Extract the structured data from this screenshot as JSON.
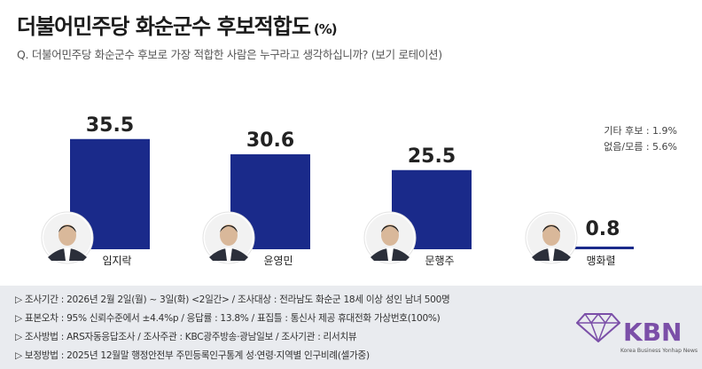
{
  "header": {
    "title": "더불어민주당 화순군수 후보적합도",
    "title_unit": "(%)",
    "question": "Q. 더불어민주당 화순군수 후보로 가장 적합한 사람은 누구라고 생각하십니까? (보기 로테이션)"
  },
  "others": {
    "etc": "기타 후보 : 1.9%",
    "none": "없음/모름 : 5.6%"
  },
  "chart_data": {
    "type": "bar",
    "categories": [
      "임지락",
      "윤영민",
      "문행주",
      "맹화렬"
    ],
    "values": [
      35.5,
      30.6,
      25.5,
      0.8
    ],
    "value_labels": [
      "35.5",
      "30.6",
      "25.5",
      "0.8"
    ],
    "bar_color": "#1a2a8a",
    "ylim": [
      0,
      40
    ]
  },
  "survey_info": {
    "line1": "▷ 조사기간 : 2026년 2월 2일(월) ~ 3일(화) <2일간> / 조사대상 : 전라남도 화순군 18세 이상 성인 남녀 500명",
    "line2": "▷ 표본오차 : 95% 신뢰수준에서 ±4.4%p / 응답률 : 13.8% / 표집틀 : 통신사 제공 휴대전화 가상번호(100%)",
    "line3": "▷ 조사방법 : ARS자동응답조사 / 조사주관 : KBC광주방송·광남일보 / 조사기관 : 리서치뷰",
    "line4": "▷ 보정방법 : 2025년 12월말 행정안전부 주민등록인구통계 성·연령·지역별 인구비례(셀가중)"
  },
  "logo": {
    "text": "KBN",
    "subtitle": "Korea Business Yonhap News"
  }
}
